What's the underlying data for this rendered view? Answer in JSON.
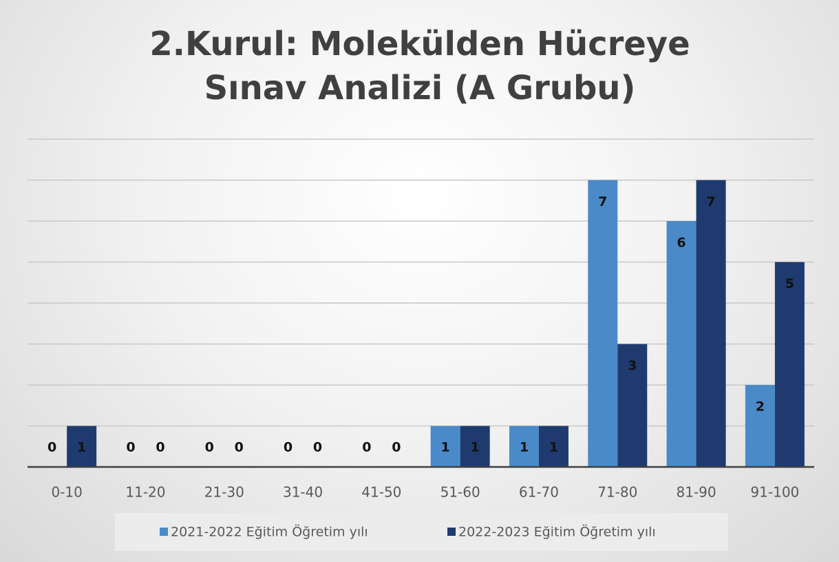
{
  "chart_data": {
    "type": "bar",
    "title": "2.Kurul: Molekülden Hücreye Sınav Analizi (A Grubu)",
    "categories": [
      "0-10",
      "11-20",
      "21-30",
      "31-40",
      "41-50",
      "51-60",
      "61-70",
      "71-80",
      "81-90",
      "91-100"
    ],
    "series": [
      {
        "name": "2021-2022 Eğitim Öğretim yılı",
        "color": "#4a8ac8",
        "values": [
          0,
          0,
          0,
          0,
          0,
          1,
          1,
          7,
          6,
          2
        ]
      },
      {
        "name": "2022-2023 Eğitim Öğretim yılı",
        "color": "#1f3a6e",
        "values": [
          1,
          0,
          0,
          0,
          0,
          1,
          1,
          3,
          7,
          5
        ]
      }
    ],
    "ylim": [
      0,
      8
    ],
    "yticks": [
      0,
      1,
      2,
      3,
      4,
      5,
      6,
      7,
      8
    ],
    "grid": true,
    "legend": "bottom"
  }
}
